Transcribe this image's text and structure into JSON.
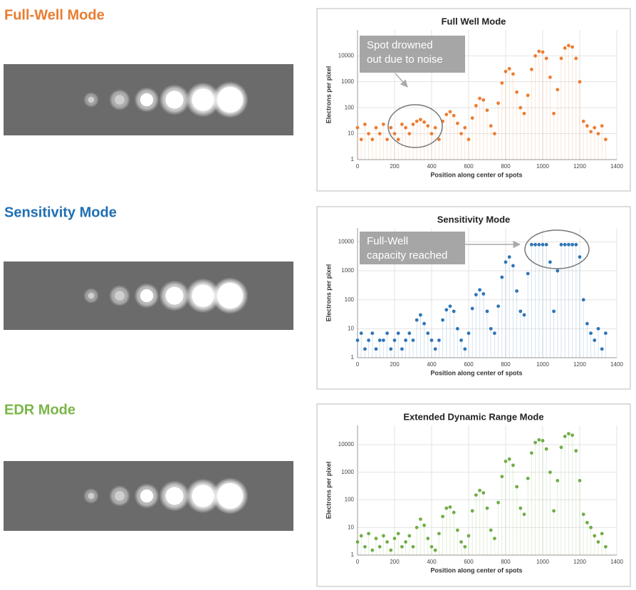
{
  "sections": [
    {
      "heading": "Full-Well Mode",
      "color": "#e97c30"
    },
    {
      "heading": "Sensitivity Mode",
      "color": "#1f6fb2"
    },
    {
      "heading": "EDR Mode",
      "color": "#7ab648"
    }
  ],
  "chart_data": [
    {
      "type": "scatter",
      "title": "Full Well Mode",
      "x_label": "Position along center of spots",
      "y_label": "Electrons per pixel",
      "color": "#ed7d31",
      "log_y": true,
      "grid": true,
      "xlim": [
        0,
        1400
      ],
      "xticks": [
        0,
        200,
        400,
        600,
        800,
        1000,
        1200,
        1400
      ],
      "ylim": [
        1,
        100000
      ],
      "yticks": [
        1,
        10,
        100,
        1000,
        10000
      ],
      "annotation": [
        "Spot drowned",
        "out due to noise"
      ],
      "x": [
        0,
        20,
        40,
        60,
        80,
        100,
        120,
        140,
        160,
        180,
        200,
        220,
        240,
        260,
        280,
        300,
        320,
        340,
        360,
        380,
        400,
        420,
        440,
        460,
        480,
        500,
        520,
        540,
        560,
        580,
        600,
        620,
        640,
        660,
        680,
        700,
        720,
        740,
        760,
        780,
        800,
        820,
        840,
        860,
        880,
        900,
        920,
        940,
        960,
        980,
        1000,
        1020,
        1040,
        1060,
        1080,
        1100,
        1120,
        1140,
        1160,
        1180,
        1200,
        1220,
        1240,
        1260,
        1280,
        1300,
        1320,
        1340
      ],
      "values": [
        17,
        6,
        23,
        10,
        6,
        17,
        10,
        23,
        6,
        17,
        10,
        6,
        23,
        17,
        10,
        23,
        30,
        35,
        28,
        20,
        10,
        17,
        6,
        30,
        55,
        70,
        50,
        25,
        10,
        17,
        6,
        40,
        120,
        230,
        200,
        80,
        20,
        10,
        150,
        900,
        2500,
        3200,
        2000,
        400,
        100,
        60,
        300,
        3000,
        10000,
        15000,
        14000,
        8000,
        1500,
        60,
        500,
        8000,
        20000,
        25000,
        22000,
        8000,
        1000,
        30,
        20,
        12,
        17,
        10,
        20,
        6
      ]
    },
    {
      "type": "scatter",
      "title": "Sensitivity Mode",
      "x_label": "Position along center of spots",
      "y_label": "Electrons per pixel",
      "color": "#2e75b6",
      "log_y": true,
      "grid": true,
      "xlim": [
        0,
        1400
      ],
      "xticks": [
        0,
        200,
        400,
        600,
        800,
        1000,
        1200,
        1400
      ],
      "ylim": [
        1,
        30000
      ],
      "yticks": [
        1,
        10,
        100,
        1000,
        10000
      ],
      "annotation": [
        "Full-Well",
        "capacity reached"
      ],
      "x": [
        0,
        20,
        40,
        60,
        80,
        100,
        120,
        140,
        160,
        180,
        200,
        220,
        240,
        260,
        280,
        300,
        320,
        340,
        360,
        380,
        400,
        420,
        440,
        460,
        480,
        500,
        520,
        540,
        560,
        580,
        600,
        620,
        640,
        660,
        680,
        700,
        720,
        740,
        760,
        780,
        800,
        820,
        840,
        860,
        880,
        900,
        920,
        940,
        960,
        980,
        1000,
        1020,
        1040,
        1060,
        1080,
        1100,
        1120,
        1140,
        1160,
        1180,
        1200,
        1220,
        1240,
        1260,
        1280,
        1300,
        1320,
        1340
      ],
      "values": [
        4,
        7,
        2,
        4,
        7,
        2,
        4,
        4,
        7,
        2,
        4,
        7,
        2,
        4,
        7,
        4,
        20,
        30,
        15,
        7,
        4,
        2,
        4,
        20,
        45,
        60,
        40,
        10,
        4,
        2,
        7,
        50,
        150,
        220,
        160,
        40,
        10,
        7,
        60,
        600,
        2000,
        3000,
        1500,
        200,
        40,
        30,
        800,
        8000,
        8000,
        8000,
        8000,
        8000,
        2000,
        40,
        1000,
        8000,
        8000,
        8000,
        8000,
        8000,
        3000,
        100,
        15,
        7,
        4,
        10,
        2,
        7
      ]
    },
    {
      "type": "scatter",
      "title": "Extended Dynamic Range Mode",
      "x_label": "Position along center of spots",
      "y_label": "Electrons per pixel",
      "color": "#70ad47",
      "log_y": true,
      "grid": true,
      "xlim": [
        0,
        1400
      ],
      "xticks": [
        0,
        200,
        400,
        600,
        800,
        1000,
        1200,
        1400
      ],
      "ylim": [
        1,
        50000
      ],
      "yticks": [
        1,
        10,
        100,
        1000,
        10000
      ],
      "x": [
        0,
        20,
        40,
        60,
        80,
        100,
        120,
        140,
        160,
        180,
        200,
        220,
        240,
        260,
        280,
        300,
        320,
        340,
        360,
        380,
        400,
        420,
        440,
        460,
        480,
        500,
        520,
        540,
        560,
        580,
        600,
        620,
        640,
        660,
        680,
        700,
        720,
        740,
        760,
        780,
        800,
        820,
        840,
        860,
        880,
        900,
        920,
        940,
        960,
        980,
        1000,
        1020,
        1040,
        1060,
        1080,
        1100,
        1120,
        1140,
        1160,
        1180,
        1200,
        1220,
        1240,
        1260,
        1280,
        1300,
        1320,
        1340
      ],
      "values": [
        3,
        5,
        2,
        6,
        1.5,
        4,
        2,
        5,
        3,
        1.5,
        4,
        6,
        2,
        3,
        5,
        2,
        10,
        20,
        12,
        4,
        2,
        1.5,
        6,
        25,
        50,
        55,
        35,
        8,
        3,
        2,
        5,
        40,
        150,
        220,
        180,
        50,
        8,
        4,
        80,
        700,
        2500,
        3000,
        1800,
        300,
        50,
        30,
        600,
        5000,
        12000,
        15000,
        14000,
        7000,
        1000,
        40,
        500,
        8000,
        20000,
        25000,
        22000,
        6000,
        500,
        30,
        15,
        10,
        5,
        3,
        6,
        2
      ]
    }
  ]
}
